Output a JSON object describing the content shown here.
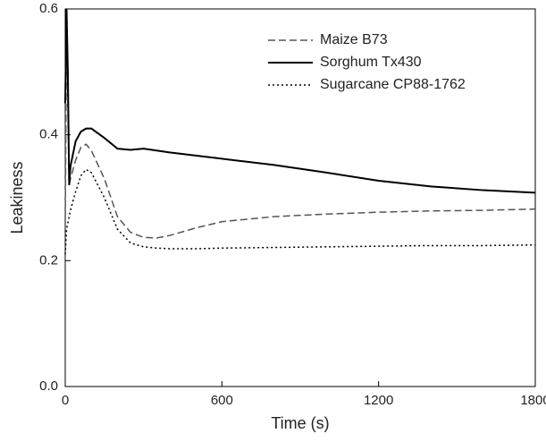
{
  "chart_data": {
    "type": "line",
    "x_label": "Time (s)",
    "y_label": "Leakiness",
    "x": [
      0,
      5,
      10,
      15,
      20,
      40,
      60,
      80,
      100,
      150,
      200,
      250,
      300,
      350,
      400,
      500,
      600,
      800,
      1000,
      1200,
      1400,
      1600,
      1800
    ],
    "series": [
      {
        "name": "Maize B73",
        "color": "#555555",
        "line_style": "dashed",
        "values": [
          0.25,
          0.6,
          0.45,
          0.32,
          0.33,
          0.36,
          0.38,
          0.385,
          0.375,
          0.33,
          0.27,
          0.245,
          0.237,
          0.236,
          0.24,
          0.252,
          0.262,
          0.27,
          0.274,
          0.277,
          0.279,
          0.28,
          0.282
        ]
      },
      {
        "name": "Sorghum Tx430",
        "color": "#000000",
        "line_style": "solid",
        "values": [
          0.45,
          0.6,
          0.5,
          0.32,
          0.35,
          0.39,
          0.405,
          0.41,
          0.41,
          0.395,
          0.378,
          0.376,
          0.378,
          0.375,
          0.372,
          0.367,
          0.362,
          0.352,
          0.34,
          0.327,
          0.318,
          0.312,
          0.308
        ]
      },
      {
        "name": "Sugarcane CP88-1762",
        "color": "#000000",
        "line_style": "dotted",
        "values": [
          0.21,
          0.25,
          0.26,
          0.27,
          0.28,
          0.31,
          0.335,
          0.345,
          0.34,
          0.3,
          0.25,
          0.228,
          0.222,
          0.22,
          0.219,
          0.219,
          0.22,
          0.221,
          0.222,
          0.223,
          0.224,
          0.224,
          0.225
        ]
      }
    ],
    "xlim": [
      0,
      1800
    ],
    "xticks": [
      0,
      600,
      1200,
      1800
    ],
    "ylim": [
      0,
      0.6
    ],
    "yticks": [
      {
        "value": 0,
        "label": "0.0"
      },
      0.2,
      0.4,
      0.6
    ],
    "legend": "upper right"
  }
}
